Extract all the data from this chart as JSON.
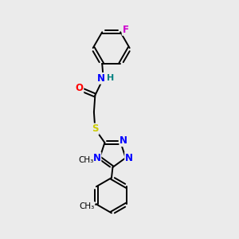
{
  "background_color": "#ebebeb",
  "bond_color": "#000000",
  "atom_colors": {
    "N": "#0000ff",
    "O": "#ff0000",
    "S": "#cccc00",
    "F": "#cc00cc",
    "H": "#008080"
  },
  "font_size": 8.5,
  "fig_width": 3.0,
  "fig_height": 3.0,
  "dpi": 100
}
